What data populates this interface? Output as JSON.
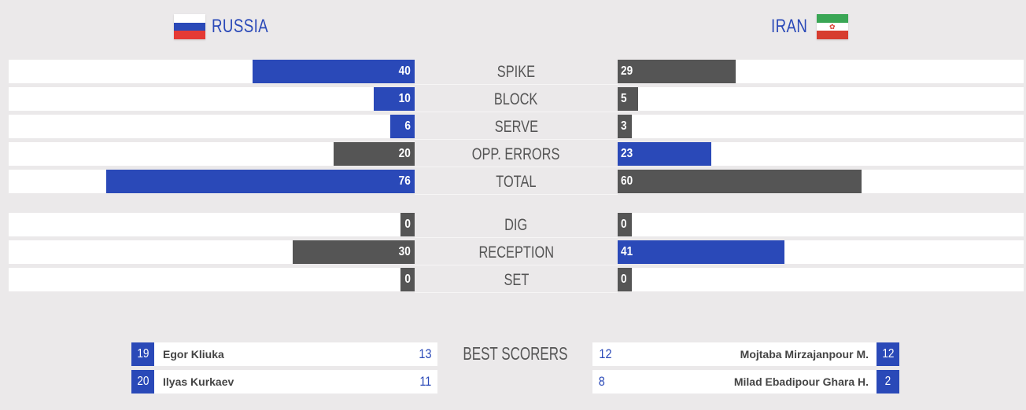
{
  "teams": {
    "left": {
      "name": "RUSSIA",
      "flag": [
        "#ffffff",
        "#2a49b8",
        "#e53a35"
      ]
    },
    "right": {
      "name": "IRAN",
      "flag": [
        "#3aa655",
        "#ffffff",
        "#d73d2f"
      ]
    }
  },
  "max_value": 100,
  "colors": {
    "winner": "#2a49b8",
    "loser": "#555555",
    "track": "#ffffff"
  },
  "stats": [
    {
      "label": "SPIKE",
      "left": {
        "value": "40",
        "color": "blue"
      },
      "right": {
        "value": "29",
        "color": "gray"
      }
    },
    {
      "label": "BLOCK",
      "left": {
        "value": "10",
        "color": "blue"
      },
      "right": {
        "value": "5",
        "color": "gray"
      }
    },
    {
      "label": "SERVE",
      "left": {
        "value": "6",
        "color": "blue"
      },
      "right": {
        "value": "3",
        "color": "gray"
      }
    },
    {
      "label": "OPP. ERRORS",
      "left": {
        "value": "20",
        "color": "gray"
      },
      "right": {
        "value": "23",
        "color": "blue"
      }
    },
    {
      "label": "TOTAL",
      "left": {
        "value": "76",
        "color": "blue"
      },
      "right": {
        "value": "60",
        "color": "gray"
      }
    },
    {
      "label": "DIG",
      "left": {
        "value": "0",
        "color": "gray"
      },
      "right": {
        "value": "0",
        "color": "gray"
      }
    },
    {
      "label": "RECEPTION",
      "left": {
        "value": "30",
        "color": "gray"
      },
      "right": {
        "value": "41",
        "color": "blue"
      }
    },
    {
      "label": "SET",
      "left": {
        "value": "0",
        "color": "gray"
      },
      "right": {
        "value": "0",
        "color": "gray"
      }
    }
  ],
  "best_scorers": {
    "label": "BEST SCORERS",
    "left": [
      {
        "number": "19",
        "name": "Egor Kliuka",
        "points": "13"
      },
      {
        "number": "20",
        "name": "Ilyas Kurkaev",
        "points": "11"
      }
    ],
    "right": [
      {
        "number": "12",
        "name": "Mojtaba Mirzajanpour M.",
        "points": "12"
      },
      {
        "number": "2",
        "name": "Milad Ebadipour Ghara H.",
        "points": "8"
      }
    ]
  }
}
